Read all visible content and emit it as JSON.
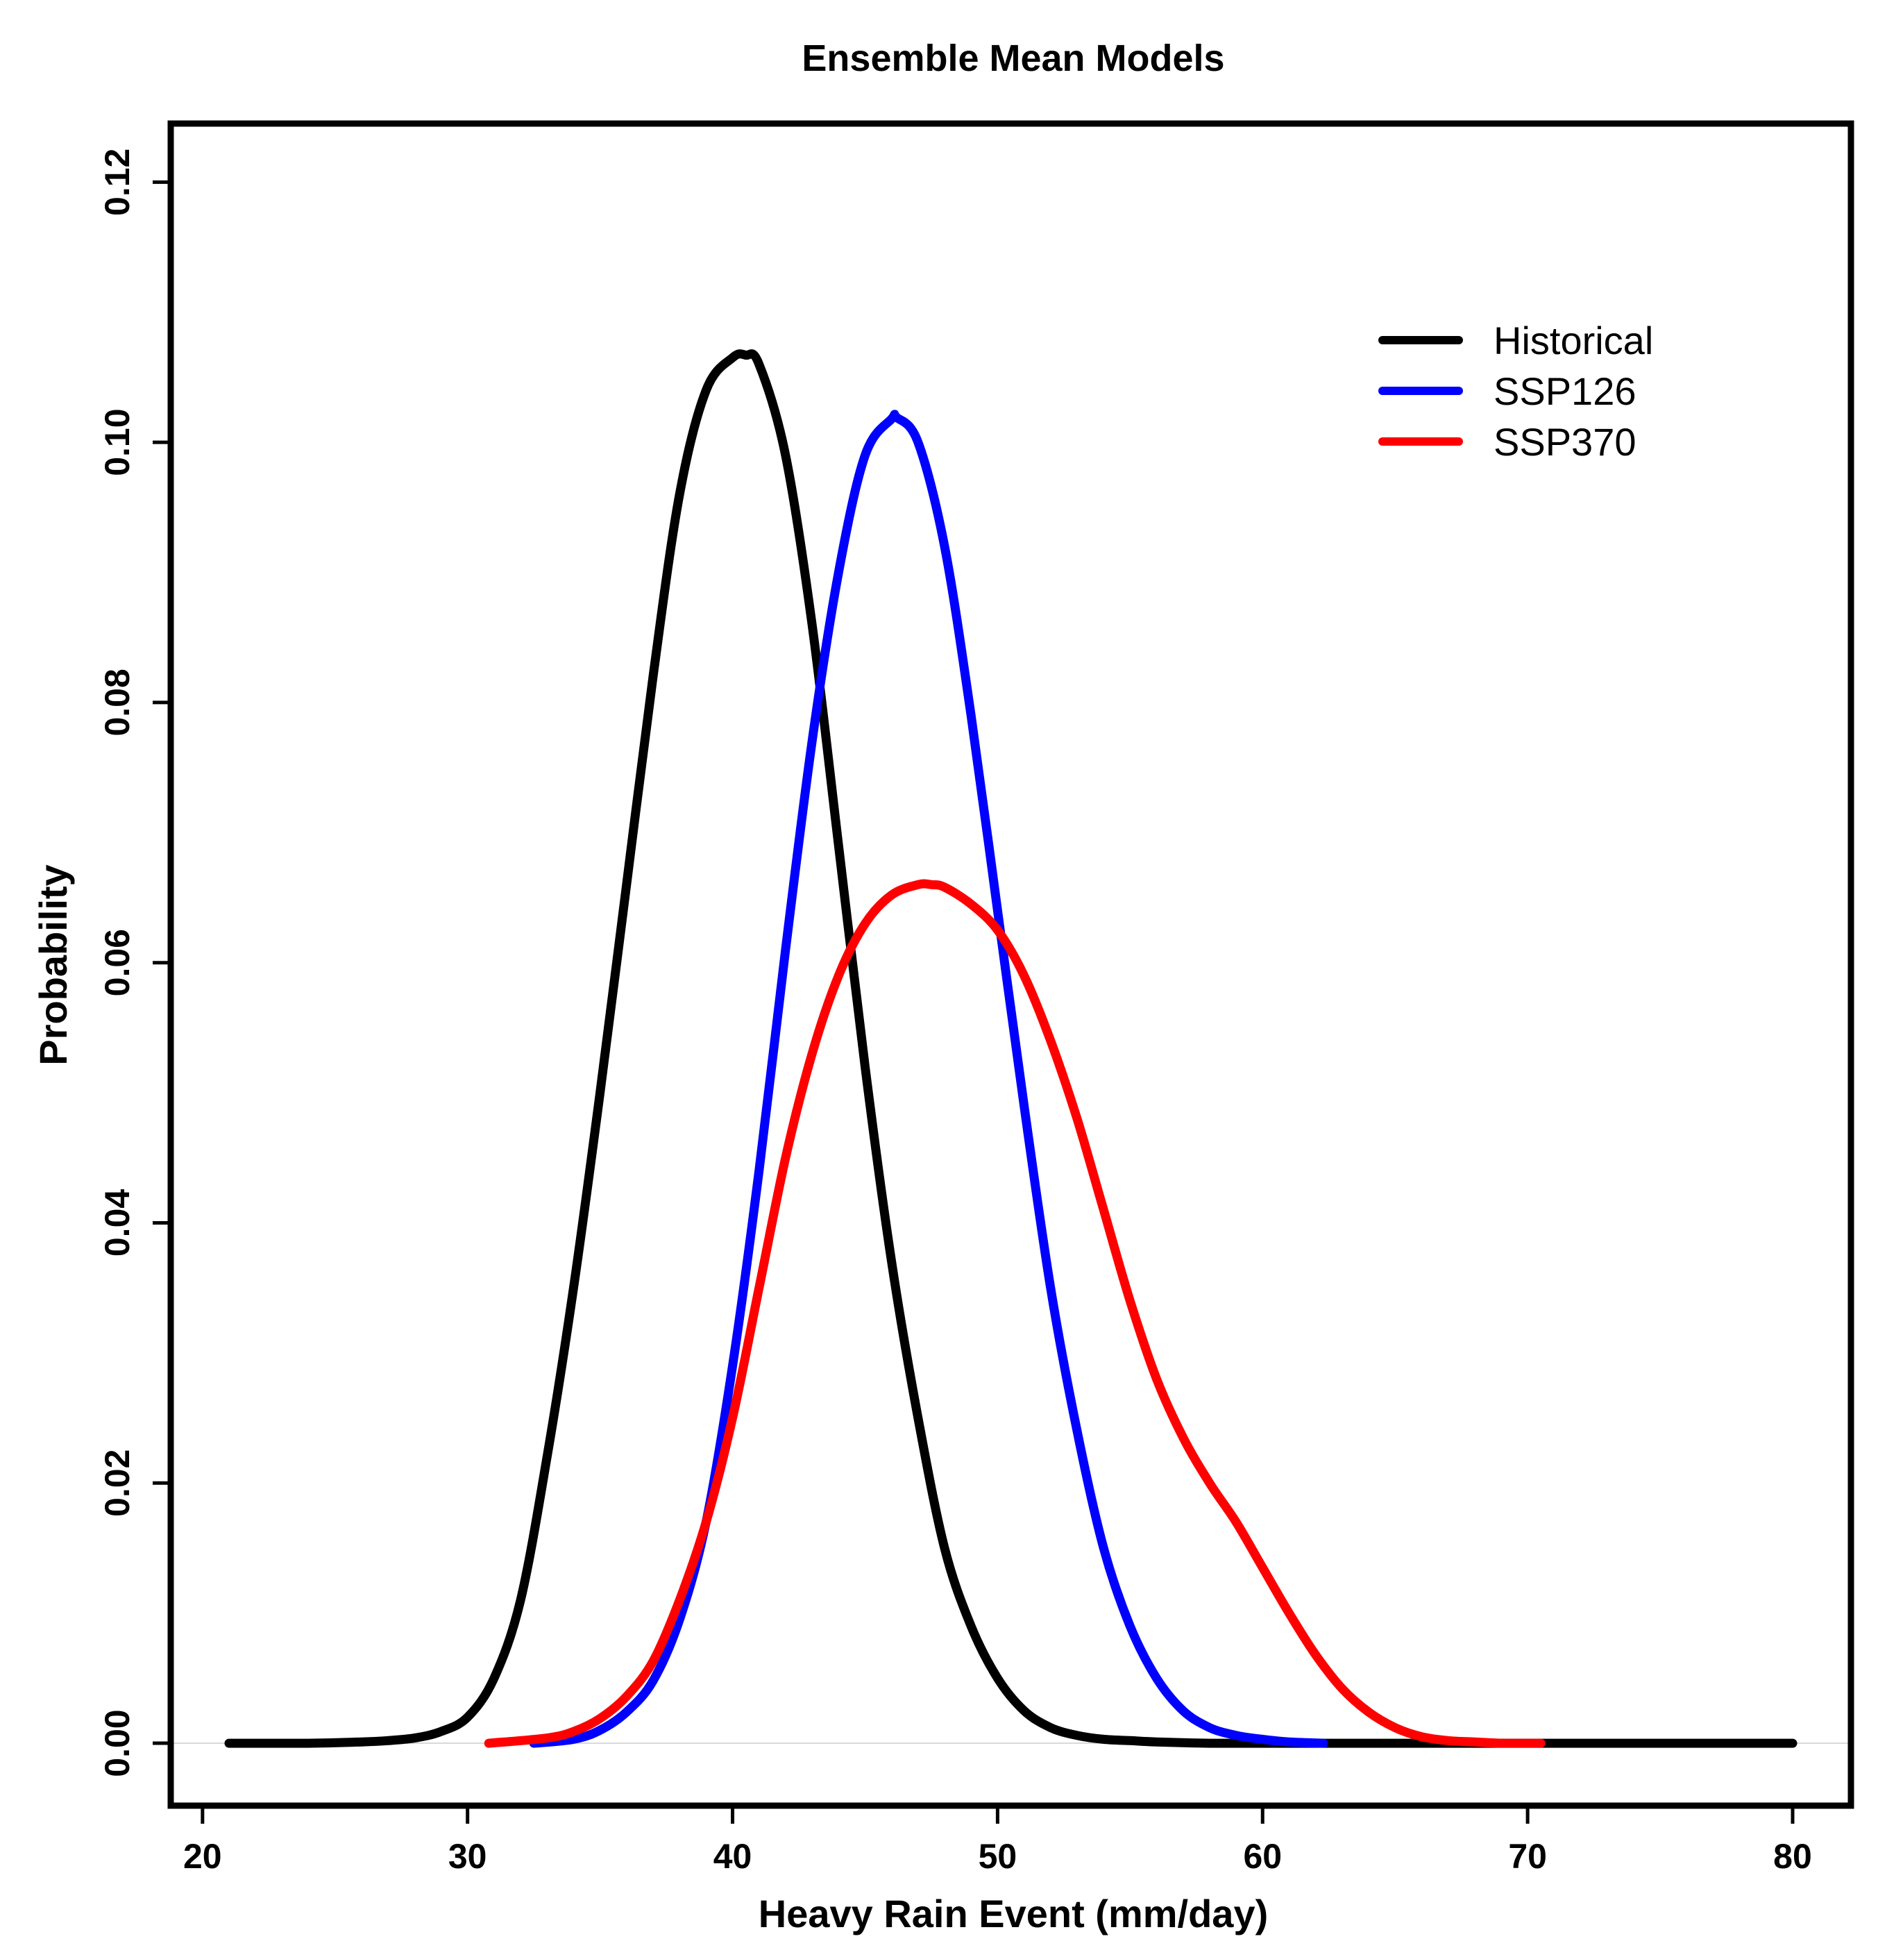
{
  "chart_data": {
    "type": "line",
    "title": "Ensemble Mean Models",
    "xlabel": "Heavy Rain Event (mm/day)",
    "ylabel": "Probability",
    "xlim": [
      18.8,
      82.2
    ],
    "ylim": [
      -0.0048,
      0.1245
    ],
    "xticks": [
      20,
      30,
      40,
      50,
      60,
      70,
      80
    ],
    "yticks": [
      0.0,
      0.02,
      0.04,
      0.06,
      0.08,
      0.1,
      0.12
    ],
    "xtick_labels": [
      "20",
      "30",
      "40",
      "50",
      "60",
      "70",
      "80"
    ],
    "ytick_labels": [
      "0.00",
      "0.02",
      "0.04",
      "0.06",
      "0.08",
      "0.10",
      "0.12"
    ],
    "grid": false,
    "zero_line": true,
    "legend_position": "top-right",
    "series": [
      {
        "name": "Historical",
        "color": "#000000",
        "x": [
          21,
          24,
          26,
          27,
          28,
          29,
          30,
          31,
          32,
          33,
          34,
          35,
          36,
          37,
          38,
          39,
          40,
          40.5,
          41,
          42,
          43,
          44,
          45,
          46,
          47,
          48,
          49,
          50,
          51,
          52,
          53,
          54,
          55,
          56,
          58,
          60,
          65,
          70,
          75,
          80
        ],
        "y": [
          0,
          0,
          0.0001,
          0.0002,
          0.0004,
          0.0009,
          0.002,
          0.005,
          0.011,
          0.022,
          0.035,
          0.05,
          0.066,
          0.082,
          0.096,
          0.104,
          0.1065,
          0.1067,
          0.106,
          0.099,
          0.086,
          0.069,
          0.052,
          0.037,
          0.025,
          0.015,
          0.009,
          0.005,
          0.0025,
          0.0012,
          0.0006,
          0.0003,
          0.0002,
          0.0001,
          0,
          0,
          0,
          0,
          0,
          0
        ]
      },
      {
        "name": "SSP126",
        "color": "#0000ff",
        "x": [
          32.5,
          34,
          35,
          36,
          37,
          38,
          39,
          40,
          41,
          42,
          43,
          44,
          45,
          46,
          46.2,
          47,
          48,
          49,
          50,
          51,
          52,
          53,
          54,
          55,
          56,
          57,
          58,
          59,
          60,
          61,
          62.3
        ],
        "y": [
          0,
          0.0003,
          0.001,
          0.0024,
          0.0048,
          0.0095,
          0.017,
          0.029,
          0.044,
          0.061,
          0.077,
          0.09,
          0.099,
          0.1018,
          0.1019,
          0.1,
          0.092,
          0.079,
          0.064,
          0.049,
          0.035,
          0.024,
          0.015,
          0.009,
          0.005,
          0.0025,
          0.0012,
          0.0006,
          0.0003,
          0.0001,
          0
        ]
      },
      {
        "name": "SSP370",
        "color": "#ff0000",
        "x": [
          30.8,
          33,
          34,
          35,
          36,
          37,
          38,
          39,
          40,
          41,
          42,
          43,
          44,
          45,
          46,
          47,
          47.5,
          48,
          49,
          50,
          51,
          52,
          53,
          54,
          55,
          56,
          57,
          58,
          59,
          60,
          61,
          62,
          63,
          64,
          65,
          66,
          67,
          68,
          69,
          70.5
        ],
        "y": [
          0,
          0.0004,
          0.0009,
          0.0019,
          0.0036,
          0.0063,
          0.011,
          0.017,
          0.025,
          0.035,
          0.045,
          0.053,
          0.059,
          0.063,
          0.0652,
          0.066,
          0.066,
          0.0658,
          0.0645,
          0.0625,
          0.059,
          0.054,
          0.048,
          0.041,
          0.034,
          0.028,
          0.0235,
          0.02,
          0.017,
          0.0135,
          0.01,
          0.0068,
          0.0042,
          0.0024,
          0.0012,
          0.0005,
          0.0002,
          0.0001,
          0,
          0
        ]
      }
    ]
  }
}
